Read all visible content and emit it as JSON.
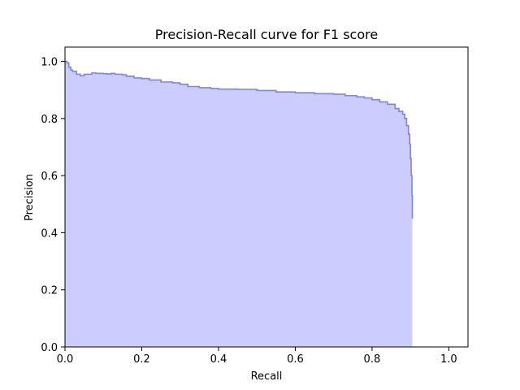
{
  "chart_data": {
    "type": "area",
    "title": "Precision-Recall curve for F1 score",
    "xlabel": "Recall",
    "ylabel": "Precision",
    "xlim": [
      0.0,
      1.05
    ],
    "ylim": [
      0.0,
      1.05
    ],
    "xticks": [
      0.0,
      0.2,
      0.4,
      0.6,
      0.8,
      1.0
    ],
    "xtick_labels": [
      "0.0",
      "0.2",
      "0.4",
      "0.6",
      "0.8",
      "1.0"
    ],
    "yticks": [
      0.0,
      0.2,
      0.4,
      0.6,
      0.8,
      1.0
    ],
    "ytick_labels": [
      "0.0",
      "0.2",
      "0.4",
      "0.6",
      "0.8",
      "1.0"
    ],
    "grid": false,
    "colors": {
      "fill": "#ccccff",
      "line": "#8080f0"
    },
    "series": [
      {
        "x": [
          0.0,
          0.005,
          0.01,
          0.015,
          0.02,
          0.03,
          0.04,
          0.05,
          0.06,
          0.07,
          0.08,
          0.09,
          0.1,
          0.11,
          0.12,
          0.13,
          0.14,
          0.15,
          0.16,
          0.18,
          0.2,
          0.22,
          0.25,
          0.28,
          0.3,
          0.32,
          0.35,
          0.38,
          0.4,
          0.45,
          0.5,
          0.55,
          0.6,
          0.65,
          0.7,
          0.73,
          0.76,
          0.78,
          0.8,
          0.82,
          0.84,
          0.86,
          0.87,
          0.88,
          0.885,
          0.89,
          0.895,
          0.898,
          0.9,
          0.902,
          0.904,
          0.905,
          0.905
        ],
        "y": [
          1.0,
          0.995,
          0.98,
          0.97,
          0.965,
          0.955,
          0.95,
          0.955,
          0.955,
          0.96,
          0.958,
          0.958,
          0.957,
          0.956,
          0.958,
          0.955,
          0.955,
          0.953,
          0.948,
          0.942,
          0.94,
          0.935,
          0.928,
          0.925,
          0.92,
          0.912,
          0.908,
          0.905,
          0.903,
          0.902,
          0.898,
          0.893,
          0.89,
          0.887,
          0.885,
          0.88,
          0.876,
          0.872,
          0.866,
          0.858,
          0.85,
          0.835,
          0.825,
          0.815,
          0.8,
          0.775,
          0.745,
          0.71,
          0.66,
          0.6,
          0.53,
          0.46,
          0.45
        ]
      }
    ]
  }
}
